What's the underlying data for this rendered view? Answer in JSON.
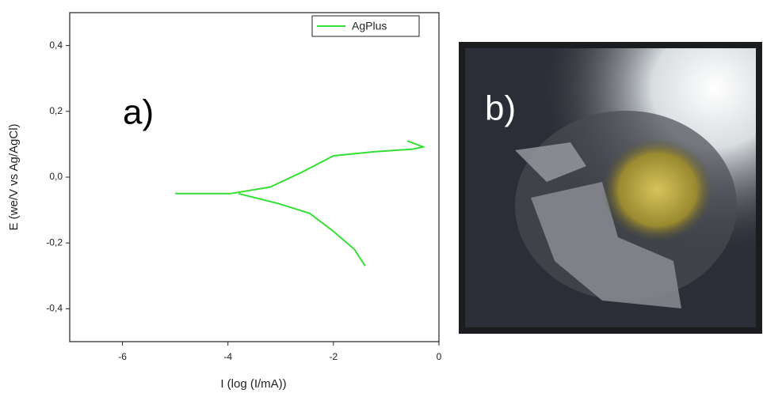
{
  "chart_data": {
    "type": "line",
    "xlabel": "I (log (I/mA))",
    "ylabel": "E (we/V vs Ag/AgCl)",
    "annotation": "a)",
    "xlim": [
      -7,
      0
    ],
    "xticks": [
      -6,
      -4,
      -2,
      0
    ],
    "ylim": [
      -0.5,
      0.5
    ],
    "yticks": [
      {
        "value": -0.4,
        "label": "-0,4"
      },
      {
        "value": -0.2,
        "label": "-0,2"
      },
      {
        "value": 0,
        "label": "0,0"
      },
      {
        "value": 0.2,
        "label": "0,2"
      },
      {
        "value": 0.4,
        "label": "0,4"
      }
    ],
    "legend": "top-right",
    "x": [
      -5,
      -3.95,
      -3.2,
      -2.6,
      -2,
      -1.25,
      -0.5,
      -0.3,
      -0.6,
      null,
      -3.8,
      -3.05,
      -2.45,
      -2,
      -1.6,
      -1.4
    ],
    "series": [
      {
        "name": "AgPlus",
        "color": "#33e033",
        "values": [
          -0.05,
          -0.05,
          -0.03,
          0.015,
          0.065,
          0.077,
          0.085,
          0.092,
          0.11,
          null,
          -0.05,
          -0.08,
          -0.11,
          -0.165,
          -0.22,
          -0.27
        ]
      }
    ]
  },
  "image_label": "b)"
}
